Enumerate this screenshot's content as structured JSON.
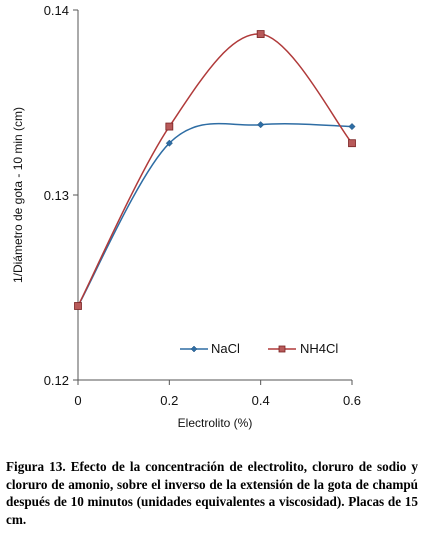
{
  "chart_data": {
    "type": "line",
    "x": [
      0,
      0.2,
      0.4,
      0.6
    ],
    "x_tick_labels": [
      "0",
      "0.2",
      "0.4",
      "0.6"
    ],
    "y_tick_labels": [
      "0.12",
      "0.13",
      "0.14"
    ],
    "xlim": [
      0,
      0.6
    ],
    "ylim": [
      0.12,
      0.14
    ],
    "xlabel": "Electrolito (%)",
    "ylabel": "1/Diámetro de gota - 10 min (cm)",
    "series": [
      {
        "name": "NaCl",
        "values": [
          0.124,
          0.1328,
          0.1338,
          0.1337
        ],
        "color": "#2e6da4",
        "marker": "diamond"
      },
      {
        "name": "NH4Cl",
        "values": [
          0.124,
          0.1337,
          0.1387,
          0.1328
        ],
        "color": "#b03a3a",
        "marker": "square"
      }
    ],
    "legend": {
      "placement": "bottom-center",
      "entries": [
        "NaCl",
        "NH4Cl"
      ]
    },
    "grid": false
  },
  "caption": {
    "label": "Figura 13.",
    "text": " Efecto de la concentración de electrolito, cloruro de sodio y cloruro de amonio, sobre el inverso de la extensión de la gota de champú después de 10 minutos (unidades equivalentes a viscosidad). Placas de 15 cm."
  }
}
